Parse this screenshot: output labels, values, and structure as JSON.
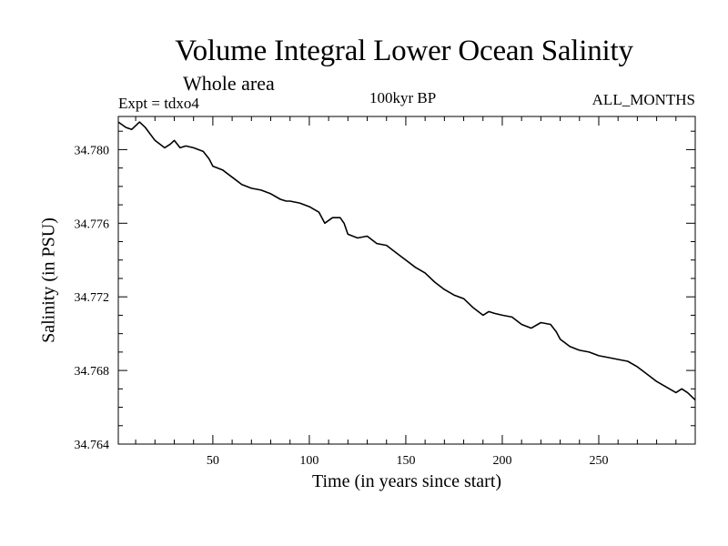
{
  "header": {
    "title": "Volume Integral Lower Ocean Salinity",
    "subtitle": "Whole area",
    "experiment": "Expt = tdxo4",
    "period": "100kyr BP",
    "months": "ALL_MONTHS"
  },
  "chart_data": {
    "type": "line",
    "title": "Volume Integral Lower Ocean Salinity",
    "xlabel": "Time (in years since start)",
    "ylabel": "Salinity (in PSU)",
    "xlim": [
      1,
      300
    ],
    "ylim": [
      34.764,
      34.7818
    ],
    "x_ticks": [
      50,
      100,
      150,
      200,
      250
    ],
    "y_ticks": [
      34.764,
      34.768,
      34.772,
      34.776,
      34.78
    ],
    "y_tick_labels": [
      "34.764",
      "34.768",
      "34.772",
      "34.776",
      "34.780"
    ],
    "grid": false,
    "series": [
      {
        "color": "#000000",
        "x": [
          1,
          5,
          8,
          12,
          15,
          20,
          25,
          28,
          30,
          33,
          36,
          40,
          45,
          48,
          50,
          55,
          60,
          65,
          70,
          75,
          80,
          85,
          88,
          90,
          95,
          100,
          105,
          108,
          112,
          116,
          118,
          120,
          125,
          130,
          135,
          140,
          145,
          150,
          155,
          160,
          165,
          170,
          175,
          180,
          185,
          190,
          193,
          196,
          200,
          205,
          210,
          215,
          220,
          225,
          228,
          230,
          235,
          240,
          245,
          250,
          255,
          260,
          265,
          270,
          275,
          280,
          285,
          290,
          293,
          296,
          300
        ],
        "y": [
          34.7815,
          34.7812,
          34.7811,
          34.7815,
          34.7812,
          34.7805,
          34.7801,
          34.7803,
          34.7805,
          34.7801,
          34.7802,
          34.7801,
          34.7799,
          34.7795,
          34.7791,
          34.7789,
          34.7785,
          34.7781,
          34.7779,
          34.7778,
          34.7776,
          34.7773,
          34.7772,
          34.7772,
          34.7771,
          34.7769,
          34.7766,
          34.776,
          34.7763,
          34.7763,
          34.776,
          34.7754,
          34.7752,
          34.7753,
          34.7749,
          34.7748,
          34.7744,
          34.774,
          34.7736,
          34.7733,
          34.7728,
          34.7724,
          34.7721,
          34.7719,
          34.7714,
          34.771,
          34.7712,
          34.7711,
          34.771,
          34.7709,
          34.7705,
          34.7703,
          34.7706,
          34.7705,
          34.7701,
          34.7697,
          34.7693,
          34.7691,
          34.769,
          34.7688,
          34.7687,
          34.7686,
          34.7685,
          34.7682,
          34.7678,
          34.7674,
          34.7671,
          34.7668,
          34.767,
          34.7668,
          34.7664
        ]
      }
    ]
  }
}
